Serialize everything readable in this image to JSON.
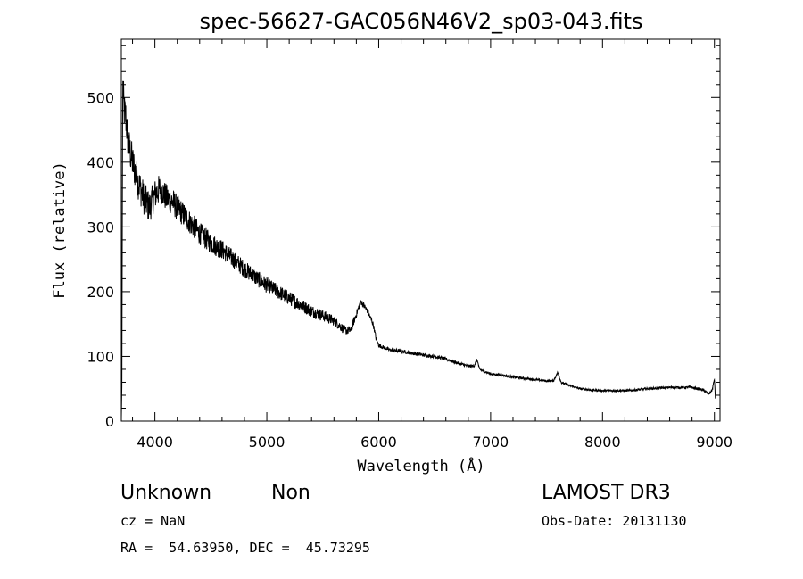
{
  "chart_data": {
    "type": "line",
    "title": "spec-56627-GAC056N46V2_sp03-043.fits",
    "xlabel": "Wavelength (Å)",
    "ylabel": "Flux (relative)",
    "xlim": [
      3700,
      9050
    ],
    "ylim": [
      0,
      590
    ],
    "xticks": [
      4000,
      5000,
      6000,
      7000,
      8000,
      9000
    ],
    "yticks": [
      0,
      100,
      200,
      300,
      400,
      500
    ],
    "grid": false,
    "anchors": [
      [
        3700,
        5
      ],
      [
        3705,
        60
      ],
      [
        3712,
        520
      ],
      [
        3725,
        480
      ],
      [
        3740,
        470
      ],
      [
        3760,
        430
      ],
      [
        3800,
        400
      ],
      [
        3850,
        370
      ],
      [
        3900,
        345
      ],
      [
        3950,
        330
      ],
      [
        4000,
        350
      ],
      [
        4050,
        360
      ],
      [
        4100,
        345
      ],
      [
        4150,
        340
      ],
      [
        4200,
        330
      ],
      [
        4300,
        310
      ],
      [
        4400,
        290
      ],
      [
        4500,
        275
      ],
      [
        4600,
        265
      ],
      [
        4700,
        250
      ],
      [
        4800,
        235
      ],
      [
        4900,
        222
      ],
      [
        5000,
        210
      ],
      [
        5100,
        200
      ],
      [
        5200,
        190
      ],
      [
        5300,
        180
      ],
      [
        5400,
        170
      ],
      [
        5500,
        163
      ],
      [
        5600,
        155
      ],
      [
        5700,
        140
      ],
      [
        5750,
        140
      ],
      [
        5780,
        155
      ],
      [
        5810,
        170
      ],
      [
        5840,
        185
      ],
      [
        5870,
        178
      ],
      [
        5900,
        170
      ],
      [
        5950,
        150
      ],
      [
        5980,
        125
      ],
      [
        6000,
        117
      ],
      [
        6100,
        110
      ],
      [
        6200,
        108
      ],
      [
        6300,
        105
      ],
      [
        6400,
        102
      ],
      [
        6500,
        100
      ],
      [
        6600,
        96
      ],
      [
        6700,
        90
      ],
      [
        6800,
        85
      ],
      [
        6850,
        85
      ],
      [
        6880,
        95
      ],
      [
        6900,
        80
      ],
      [
        7000,
        73
      ],
      [
        7100,
        71
      ],
      [
        7200,
        68
      ],
      [
        7300,
        66
      ],
      [
        7400,
        64
      ],
      [
        7500,
        62
      ],
      [
        7560,
        62
      ],
      [
        7600,
        75
      ],
      [
        7630,
        60
      ],
      [
        7700,
        55
      ],
      [
        7800,
        50
      ],
      [
        7900,
        48
      ],
      [
        8000,
        47
      ],
      [
        8100,
        47
      ],
      [
        8200,
        47
      ],
      [
        8300,
        48
      ],
      [
        8400,
        50
      ],
      [
        8500,
        51
      ],
      [
        8600,
        52
      ],
      [
        8700,
        52
      ],
      [
        8800,
        52
      ],
      [
        8900,
        48
      ],
      [
        8950,
        42
      ],
      [
        8980,
        48
      ],
      [
        9000,
        65
      ],
      [
        9010,
        30
      ]
    ],
    "noise": [
      [
        3700,
        60
      ],
      [
        4200,
        40
      ],
      [
        4700,
        28
      ],
      [
        5500,
        18
      ],
      [
        5750,
        12
      ],
      [
        6000,
        6
      ],
      [
        7000,
        4
      ],
      [
        8000,
        3
      ],
      [
        9000,
        4
      ]
    ]
  },
  "info": {
    "class": "Unknown",
    "subclass": "Non",
    "cz": "cz = NaN",
    "radec": "RA =  54.63950, DEC =  45.73295",
    "survey": "LAMOST DR3",
    "obsdate": "Obs-Date: 20131130"
  }
}
